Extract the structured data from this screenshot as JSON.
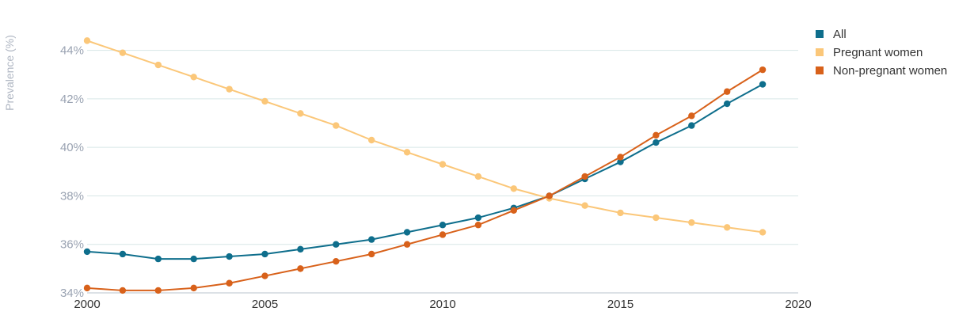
{
  "chart_data": {
    "type": "line",
    "title": "",
    "xlabel": "",
    "ylabel": "Prevalence (%)",
    "xlim": [
      2000,
      2020
    ],
    "ylim": [
      34,
      45
    ],
    "y_ticks": [
      34,
      36,
      38,
      40,
      42,
      44
    ],
    "y_tick_labels": [
      "34%",
      "36%",
      "38%",
      "40%",
      "42%",
      "44%"
    ],
    "x_ticks": [
      2000,
      2005,
      2010,
      2015,
      2020
    ],
    "x_tick_labels": [
      "2000",
      "2005",
      "2010",
      "2015",
      "2020"
    ],
    "grid": "horizontal",
    "legend_position": "top-right",
    "x": [
      2000,
      2001,
      2002,
      2003,
      2004,
      2005,
      2006,
      2007,
      2008,
      2009,
      2010,
      2011,
      2012,
      2013,
      2014,
      2015,
      2016,
      2017,
      2018,
      2019
    ],
    "series": [
      {
        "name": "All",
        "color": "#0e6e8c",
        "values": [
          35.7,
          35.6,
          35.4,
          35.4,
          35.5,
          35.6,
          35.8,
          36.0,
          36.2,
          36.5,
          36.8,
          37.1,
          37.5,
          38.0,
          38.7,
          39.4,
          40.2,
          40.9,
          41.8,
          42.6
        ]
      },
      {
        "name": "Pregnant women",
        "color": "#fbc779",
        "values": [
          44.4,
          43.9,
          43.4,
          42.9,
          42.4,
          41.9,
          41.4,
          40.9,
          40.3,
          39.8,
          39.3,
          38.8,
          38.3,
          37.9,
          37.6,
          37.3,
          37.1,
          36.9,
          36.7,
          36.5
        ]
      },
      {
        "name": "Non-pregnant women",
        "color": "#d8611a",
        "values": [
          34.2,
          34.1,
          34.1,
          34.2,
          34.4,
          34.7,
          35.0,
          35.3,
          35.6,
          36.0,
          36.4,
          36.8,
          37.4,
          38.0,
          38.8,
          39.6,
          40.5,
          41.3,
          42.3,
          43.2
        ]
      }
    ]
  }
}
